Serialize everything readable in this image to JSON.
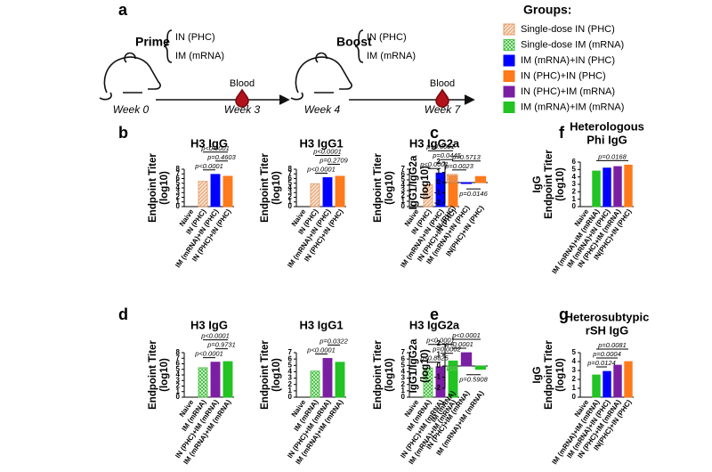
{
  "panel_labels": [
    "a",
    "b",
    "c",
    "f",
    "d",
    "e",
    "g"
  ],
  "schematic": {
    "prime": "Prime",
    "prime_routes": [
      "IN (PHC)",
      "IM (mRNA)"
    ],
    "boost": "Boost",
    "boost_routes": [
      "IN (PHC)",
      "IM (mRNA)"
    ],
    "blood": [
      "Blood",
      "Blood"
    ],
    "weeks": [
      "Week 0",
      "Week 3",
      "Week 4",
      "Week 7"
    ]
  },
  "legend": {
    "title": "Groups:",
    "items": [
      {
        "name": "Single-dose IN (PHC)",
        "color": "#e39a62",
        "pattern": "hatch"
      },
      {
        "name": "Single-dose IM (mRNA)",
        "color": "#4cc447",
        "pattern": "checker"
      },
      {
        "name": "IM (mRNA)+IN (PHC)",
        "color": "#0000ff"
      },
      {
        "name": "IN (PHC)+IN (PHC)",
        "color": "#ff7a1a"
      },
      {
        "name": "IN (PHC)+IM (mRNA)",
        "color": "#7b1fa2"
      },
      {
        "name": "IM (mRNA)+IM (mRNA)",
        "color": "#22c322"
      }
    ]
  },
  "chart_data": [
    {
      "type": "bar",
      "title": [
        "H3 IgG"
      ],
      "ylabel": [
        "Endpoint Titer",
        "(log10)"
      ],
      "categories": [
        "Naive",
        "IN (PHC)",
        "IM (mRNA)+IN (PHC)",
        "IN (PHC)+IN (PHC)"
      ],
      "values": [
        null,
        5.4,
        6.9,
        6.5
      ],
      "colors": [
        null,
        "#e39a62",
        "#0000ff",
        "#ff7a1a"
      ],
      "patterns": [
        null,
        "hatch",
        null,
        null
      ],
      "ylim": [
        0,
        8
      ],
      "yticks": [
        0,
        1,
        2,
        3,
        4,
        5,
        6,
        7,
        8
      ],
      "comparisons": [
        {
          "label": "p<0.0001",
          "pair": [
            "IN (PHC)",
            "IM (mRNA)+IN (PHC)"
          ],
          "side": "above"
        },
        {
          "label": "p=0.4603",
          "pair": [
            "IM (mRNA)+IN (PHC)",
            "IN (PHC)+IN (PHC)"
          ],
          "side": "above"
        },
        {
          "label": "p<0.0001",
          "pair": [
            "IN (PHC)",
            "IN (PHC)+IN (PHC)"
          ],
          "side": "above"
        }
      ]
    },
    {
      "type": "bar",
      "title": [
        "H3 IgG1"
      ],
      "ylabel": [
        "Endpoint Titer",
        "(log10)"
      ],
      "categories": [
        "Naive",
        "IN (PHC)",
        "IM (mRNA)+IN (PHC)",
        "IN (PHC)+IN (PHC)"
      ],
      "values": [
        null,
        4.9,
        6.2,
        6.5
      ],
      "colors": [
        null,
        "#e39a62",
        "#0000ff",
        "#ff7a1a"
      ],
      "patterns": [
        null,
        "hatch",
        null,
        null
      ],
      "ylim": [
        0,
        8
      ],
      "yticks": [
        0,
        1,
        2,
        3,
        4,
        5,
        6,
        7,
        8
      ],
      "comparisons": [
        {
          "label": "p<0.0001",
          "pair": [
            "IN (PHC)",
            "IM (mRNA)+IN (PHC)"
          ],
          "side": "above"
        },
        {
          "label": "p=0.2709",
          "pair": [
            "IM (mRNA)+IN (PHC)",
            "IN (PHC)+IN (PHC)"
          ],
          "side": "above"
        },
        {
          "label": "p<0.0001",
          "pair": [
            "IN (PHC)",
            "IN (PHC)+IN (PHC)"
          ],
          "side": "above"
        }
      ]
    },
    {
      "type": "bar",
      "title": [
        "H3 IgG2a"
      ],
      "ylabel": [
        "Endpoint Titer",
        "(log10)"
      ],
      "categories": [
        "Naive",
        "IN (PHC)",
        "IM (mRNA)+IN (PHC)",
        "IN (PHC)+IN (PHC)"
      ],
      "values": [
        null,
        4.1,
        6.3,
        5.8
      ],
      "colors": [
        null,
        "#e39a62",
        "#0000ff",
        "#ff7a1a"
      ],
      "patterns": [
        null,
        "hatch",
        null,
        null
      ],
      "ylim": [
        0,
        7
      ],
      "yticks": [
        0,
        1,
        2,
        3,
        4,
        5,
        6,
        7
      ],
      "comparisons": [
        {
          "label": "p<0.0001",
          "pair": [
            "IN (PHC)",
            "IM (mRNA)+IN (PHC)"
          ],
          "side": "above"
        },
        {
          "label": "p=0.0445",
          "pair": [
            "IM (mRNA)+IN (PHC)",
            "IN (PHC)+IN (PHC)"
          ],
          "side": "above"
        },
        {
          "label": "p<0.0001",
          "pair": [
            "IN (PHC)",
            "IN (PHC)+IN (PHC)"
          ],
          "side": "above"
        }
      ]
    },
    {
      "type": "bar",
      "title": [],
      "ylabel": [
        "IgG1/IgG2a",
        "(log10)"
      ],
      "categories": [
        "IN (PHC)",
        "IM (mRNA)+IN (PHC)",
        "IN(PHC)+IN (PHC)"
      ],
      "values": [
        0.8,
        -0.1,
        0.6
      ],
      "colors": [
        "#e39a62",
        "#0000ff",
        "#ff7a1a"
      ],
      "patterns": [
        "hatch",
        null,
        null
      ],
      "ylim": [
        -2,
        2
      ],
      "yticks": [
        -2,
        -1,
        0,
        1,
        2
      ],
      "comparisons": [
        {
          "label": "p=0.0023",
          "pair": [
            "IN (PHC)",
            "IM (mRNA)+IN (PHC)"
          ],
          "side": "above"
        },
        {
          "label": "p=0.5713",
          "pair": [
            "IN (PHC)",
            "IN(PHC)+IN (PHC)"
          ],
          "side": "above"
        },
        {
          "label": "p=0.0146",
          "pair": [
            "IM (mRNA)+IN (PHC)",
            "IN(PHC)+IN (PHC)"
          ],
          "side": "below"
        }
      ]
    },
    {
      "type": "bar",
      "title": [
        "Heterologous",
        "Phi IgG"
      ],
      "ylabel": [
        "IgG",
        "Endpoint Titer",
        "(log10)"
      ],
      "categories": [
        "Naive",
        "IM (mRNA)+IM (mRNA)",
        "IM (mRNA)+IN (PHC)",
        "IN (PHC)+IM (mRNA)",
        "IN(PHC)+IN (PHC)"
      ],
      "values": [
        null,
        4.8,
        5.2,
        5.4,
        5.6
      ],
      "colors": [
        null,
        "#22c322",
        "#0000ff",
        "#7b1fa2",
        "#ff7a1a"
      ],
      "ylim": [
        0,
        6
      ],
      "yticks": [
        0,
        1,
        2,
        3,
        4,
        5,
        6
      ],
      "comparisons": [
        {
          "label": "p=0.0168",
          "pair": [
            "IM (mRNA)+IM (mRNA)",
            "IN(PHC)+IN (PHC)"
          ],
          "side": "above"
        }
      ]
    },
    {
      "type": "bar",
      "title": [
        "H3 IgG"
      ],
      "ylabel": [
        "Endpoint Titer",
        "(log10)"
      ],
      "categories": [
        "Naive",
        "IM (mRNA)",
        "IN (PHC)+IM (mRNA)",
        "IM (mRNA)+IM (mRNA)"
      ],
      "values": [
        null,
        5.3,
        6.3,
        6.4
      ],
      "colors": [
        null,
        "#4cc447",
        "#7b1fa2",
        "#22c322"
      ],
      "patterns": [
        null,
        "checker",
        null,
        null
      ],
      "ylim": [
        0,
        8
      ],
      "yticks": [
        0,
        1,
        2,
        3,
        4,
        5,
        6,
        7,
        8
      ],
      "comparisons": [
        {
          "label": "p<0.0001",
          "pair": [
            "IM (mRNA)",
            "IN (PHC)+IM (mRNA)"
          ],
          "side": "above"
        },
        {
          "label": "p=0.9731",
          "pair": [
            "IN (PHC)+IM (mRNA)",
            "IM (mRNA)+IM (mRNA)"
          ],
          "side": "above"
        },
        {
          "label": "p<0.0001",
          "pair": [
            "IM (mRNA)",
            "IM (mRNA)+IM (mRNA)"
          ],
          "side": "above"
        }
      ]
    },
    {
      "type": "bar",
      "title": [
        "H3 IgG1"
      ],
      "ylabel": [
        "Endpoint Titer",
        "(log10)"
      ],
      "categories": [
        "Naive",
        "IM (mRNA)",
        "IN (PHC)+IM (mRNA)",
        "IM (mRNA)+IM (mRNA)"
      ],
      "values": [
        null,
        4.1,
        6.1,
        5.5
      ],
      "colors": [
        null,
        "#4cc447",
        "#7b1fa2",
        "#22c322"
      ],
      "patterns": [
        null,
        "checker",
        null,
        null
      ],
      "ylim": [
        0,
        7
      ],
      "yticks": [
        0,
        1,
        2,
        3,
        4,
        5,
        6,
        7
      ],
      "comparisons": [
        {
          "label": "p<0.0001",
          "pair": [
            "IM (mRNA)",
            "IN (PHC)+IM (mRNA)"
          ],
          "side": "above"
        },
        {
          "label": "p=0.0322",
          "pair": [
            "IN (PHC)+IM (mRNA)",
            "IM (mRNA)+IM (mRNA)"
          ],
          "side": "above"
        }
      ]
    },
    {
      "type": "bar",
      "title": [
        "H3 IgG2a"
      ],
      "ylabel": [
        "Endpoint Titer",
        "(log10)"
      ],
      "categories": [
        "Naive",
        "IM (mRNA)",
        "IN (PHC)+IM (mRNA)",
        "IM (mRNA)+IM (mRNA)"
      ],
      "values": [
        null,
        4.6,
        4.8,
        5.7
      ],
      "colors": [
        null,
        "#4cc447",
        "#7b1fa2",
        "#22c322"
      ],
      "patterns": [
        null,
        "checker",
        null,
        null
      ],
      "ylim": [
        0,
        7
      ],
      "yticks": [
        0,
        1,
        2,
        3,
        4,
        5,
        6,
        7
      ],
      "comparisons": [
        {
          "label": "p=0.8625",
          "pair": [
            "IM (mRNA)",
            "IN (PHC)+IM (mRNA)"
          ],
          "side": "above"
        },
        {
          "label": "p=0.0002",
          "pair": [
            "IN (PHC)+IM (mRNA)",
            "IM (mRNA)+IM (mRNA)"
          ],
          "side": "above"
        },
        {
          "label": "p<0.0001",
          "pair": [
            "IM (mRNA)",
            "IM (mRNA)+IM (mRNA)"
          ],
          "side": "above"
        }
      ]
    },
    {
      "type": "bar",
      "title": [],
      "ylabel": [
        "IgG1/IgG2a",
        "(log10)"
      ],
      "categories": [
        "IM (mRNA)",
        "IN (PHC)+IM (mRNA)",
        "IM (mRNA)+IM (mRNA)"
      ],
      "values": [
        -0.4,
        1.2,
        -0.3
      ],
      "colors": [
        "#4cc447",
        "#7b1fa2",
        "#22c322"
      ],
      "patterns": [
        "checker",
        null,
        null
      ],
      "ylim": [
        -2,
        2
      ],
      "yticks": [
        -2,
        -1,
        0,
        1,
        2
      ],
      "comparisons": [
        {
          "label": "p<0.0001",
          "pair": [
            "IM (mRNA)",
            "IN (PHC)+IM (mRNA)"
          ],
          "side": "above"
        },
        {
          "label": "p<0.0001",
          "pair": [
            "IM (mRNA)",
            "IM (mRNA)+IM (mRNA)"
          ],
          "side": "above"
        },
        {
          "label": "p=0.5908",
          "pair": [
            "IN (PHC)+IM (mRNA)",
            "IM (mRNA)+IM (mRNA)"
          ],
          "side": "below"
        }
      ]
    },
    {
      "type": "bar",
      "title": [
        "Heterosubtypic",
        "rSH IgG"
      ],
      "ylabel": [
        "IgG",
        "Endpoint Titer",
        "(log10)"
      ],
      "categories": [
        "Naive",
        "IM (mRNA)+IM (mRNA)",
        "IM (mRNA)+IN (PHC)",
        "IN (PHC)+IM (mRNA)",
        "IN(PHC)+IN (PHC)"
      ],
      "values": [
        null,
        2.5,
        2.9,
        3.6,
        4.0
      ],
      "colors": [
        null,
        "#22c322",
        "#0000ff",
        "#7b1fa2",
        "#ff7a1a"
      ],
      "ylim": [
        0,
        5
      ],
      "yticks": [
        0,
        1,
        2,
        3,
        4,
        5
      ],
      "comparisons": [
        {
          "label": "p=0.0124",
          "pair": [
            "IM (mRNA)+IM (mRNA)",
            "IM (mRNA)+IN (PHC)"
          ],
          "side": "above"
        },
        {
          "label": "p=0.0004",
          "pair": [
            "IM (mRNA)+IM (mRNA)",
            "IN (PHC)+IM (mRNA)"
          ],
          "side": "above"
        },
        {
          "label": "p=0.0081",
          "pair": [
            "IM (mRNA)+IM (mRNA)",
            "IN(PHC)+IN (PHC)"
          ],
          "side": "above"
        }
      ]
    }
  ]
}
